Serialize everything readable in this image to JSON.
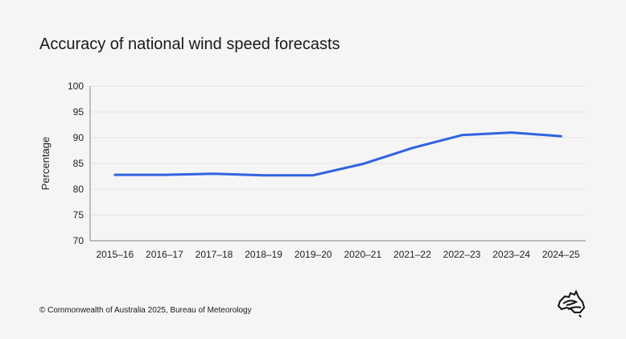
{
  "title": "Accuracy of national wind speed forecasts",
  "footer": "© Commonwealth of Australia 2025, Bureau of Meteorology",
  "logo_icon": "australia-map-logo-icon",
  "chart_data": {
    "type": "line",
    "title": "Accuracy of national wind speed forecasts",
    "xlabel": "",
    "ylabel": "Percentage",
    "ylim": [
      70,
      100
    ],
    "yticks": [
      70,
      75,
      80,
      85,
      90,
      95,
      100
    ],
    "grid": true,
    "line_color": "#2f63e0",
    "categories": [
      "2015–16",
      "2016–17",
      "2017–18",
      "2018–19",
      "2019–20",
      "2020–21",
      "2021–22",
      "2022–23",
      "2023–24",
      "2024–25"
    ],
    "values": [
      82.8,
      82.8,
      83.0,
      82.7,
      82.7,
      84.9,
      88.0,
      90.5,
      91.0,
      90.3
    ]
  }
}
